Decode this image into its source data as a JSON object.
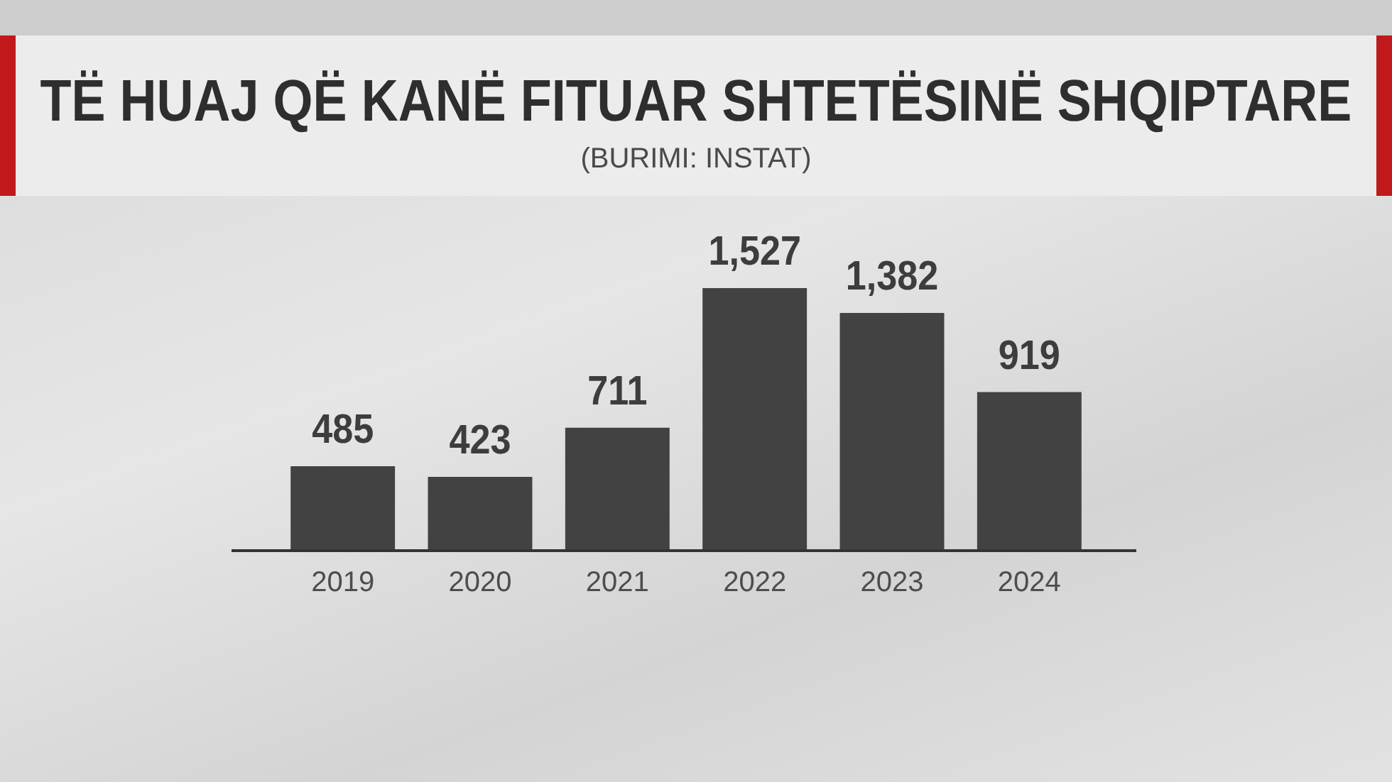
{
  "chart_data": {
    "type": "bar",
    "title": "TË HUAJ QË KANË FITUAR SHTETËSINË SHQIPTARE",
    "annotations": [
      "(BURIMI: INSTAT)"
    ],
    "categories": [
      "2019",
      "2020",
      "2021",
      "2022",
      "2023",
      "2024"
    ],
    "values": [
      485,
      423,
      711,
      1527,
      1382,
      919
    ],
    "value_labels": [
      "485",
      "423",
      "711",
      "1,527",
      "1,382",
      "919"
    ],
    "color": "#424242",
    "grid": false,
    "legend": false
  }
}
